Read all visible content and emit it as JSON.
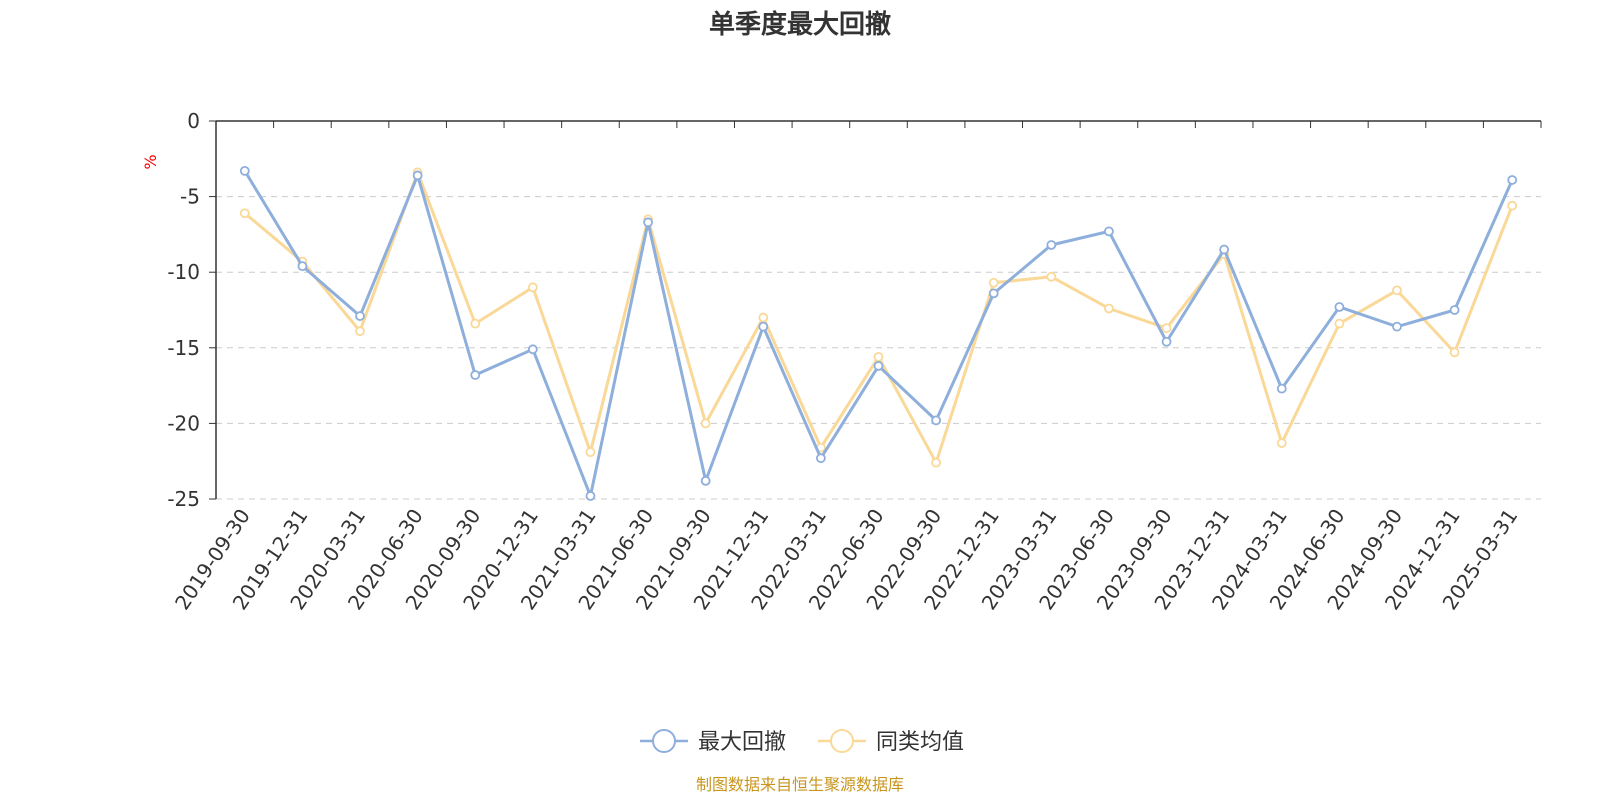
{
  "chart_data": {
    "type": "line",
    "title": "单季度最大回撤",
    "ylabel": "%",
    "ylim": [
      -25,
      0
    ],
    "yticks": [
      0,
      -5,
      -10,
      -15,
      -20,
      -25
    ],
    "grid": true,
    "legend_position": "bottom",
    "categories": [
      "2019-09-30",
      "2019-12-31",
      "2020-03-31",
      "2020-06-30",
      "2020-09-30",
      "2020-12-31",
      "2021-03-31",
      "2021-06-30",
      "2021-09-30",
      "2021-12-31",
      "2022-03-31",
      "2022-06-30",
      "2022-09-30",
      "2022-12-31",
      "2023-03-31",
      "2023-06-30",
      "2023-09-30",
      "2023-12-31",
      "2024-03-31",
      "2024-06-30",
      "2024-09-30",
      "2024-12-31",
      "2025-03-31"
    ],
    "series": [
      {
        "name": "最大回撤",
        "color": "#8eaedb",
        "values": [
          -3.3,
          -9.6,
          -12.9,
          -3.6,
          -16.8,
          -15.1,
          -24.8,
          -6.7,
          -23.8,
          -13.6,
          -22.3,
          -16.2,
          -19.8,
          -11.4,
          -8.2,
          -7.3,
          -14.6,
          -8.5,
          -17.7,
          -12.3,
          -13.6,
          -12.5,
          -3.9
        ]
      },
      {
        "name": "同类均值",
        "color": "#fad897",
        "values": [
          -6.1,
          -9.3,
          -13.9,
          -3.4,
          -13.4,
          -11.0,
          -21.9,
          -6.5,
          -20.0,
          -13.0,
          -21.6,
          -15.6,
          -22.6,
          -10.7,
          -10.3,
          -12.4,
          -13.7,
          -8.8,
          -21.3,
          -13.4,
          -11.2,
          -15.3,
          -5.6
        ]
      }
    ]
  },
  "colors": {
    "unit_label": "#ff0000",
    "source_text": "#c8961e",
    "grid": "#cccccc",
    "axis": "#333333"
  },
  "footer": {
    "source": "制图数据来自恒生聚源数据库"
  }
}
